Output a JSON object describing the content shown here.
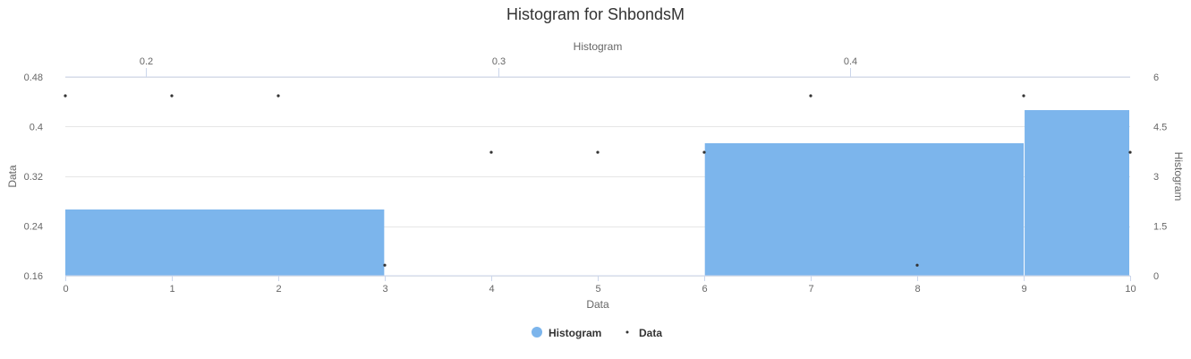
{
  "chart_data": {
    "type": "bar",
    "title": "Histogram for ShbondsM",
    "colors": {
      "histogram": "#7cb5ec",
      "data": "#333333"
    },
    "x_bottom": {
      "label": "Data",
      "range": [
        0,
        10
      ],
      "ticks": [
        0,
        1,
        2,
        3,
        4,
        5,
        6,
        7,
        8,
        9,
        10
      ]
    },
    "x_top": {
      "label": "Histogram",
      "range": [
        0.177,
        0.4797
      ],
      "ticks": [
        0.2,
        0.3,
        0.4
      ]
    },
    "y_left": {
      "label": "Data",
      "range": [
        0.16,
        0.48
      ],
      "ticks": [
        0.16,
        0.24,
        0.32,
        0.4,
        0.48
      ]
    },
    "y_right": {
      "label": "Histogram",
      "range": [
        0,
        6
      ],
      "ticks": [
        0,
        1.5,
        3,
        4.5,
        6
      ]
    },
    "histogram": {
      "name": "Histogram",
      "bins": [
        {
          "from": 0.177,
          "to": 0.2679,
          "count": 2
        },
        {
          "from": 0.2679,
          "to": 0.3588,
          "count": 0
        },
        {
          "from": 0.3588,
          "to": 0.4497,
          "count": 4
        },
        {
          "from": 0.4497,
          "to": 0.5406,
          "count": 5
        }
      ]
    },
    "data": {
      "name": "Data",
      "x": [
        0,
        1,
        2,
        3,
        4,
        5,
        6,
        7,
        8,
        9,
        10
      ],
      "y": [
        0.4497,
        0.4497,
        0.4497,
        0.177,
        0.3588,
        0.3588,
        0.3588,
        0.4497,
        0.177,
        0.4497,
        0.3588
      ]
    },
    "legend": {
      "position": "bottom-center",
      "items": [
        "Histogram",
        "Data"
      ]
    },
    "grid": true
  }
}
